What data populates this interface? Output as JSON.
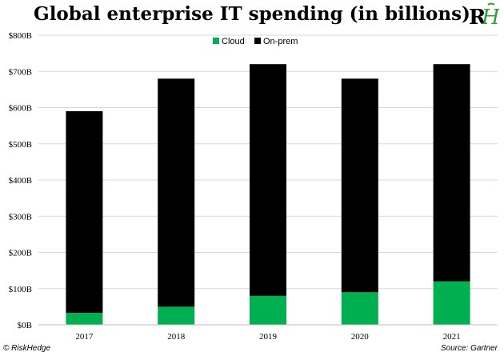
{
  "logo_text": "RH",
  "footer": {
    "copyright": "© RiskHedge",
    "source": "Source: Gartner"
  },
  "colors": {
    "cloud": "#00b050",
    "onprem": "#000000",
    "logo_r": "#000000",
    "logo_h": "#2e9e3e"
  },
  "chart_data": {
    "type": "bar",
    "stacked": true,
    "title": "Global enterprise IT spending (in billions)",
    "categories": [
      "2017",
      "2018",
      "2019",
      "2020",
      "2021"
    ],
    "series": [
      {
        "name": "Cloud",
        "values": [
          33,
          50,
          80,
          90,
          120
        ]
      },
      {
        "name": "On-prem",
        "values": [
          557,
          630,
          640,
          590,
          600
        ]
      }
    ],
    "ylim": [
      0,
      800
    ],
    "yticks": [
      "$0B",
      "$100B",
      "$200B",
      "$300B",
      "$400B",
      "$500B",
      "$600B",
      "$700B",
      "$800B"
    ],
    "ytick_values": [
      0,
      100,
      200,
      300,
      400,
      500,
      600,
      700,
      800
    ],
    "grid": true,
    "legend_position": "top-center"
  }
}
